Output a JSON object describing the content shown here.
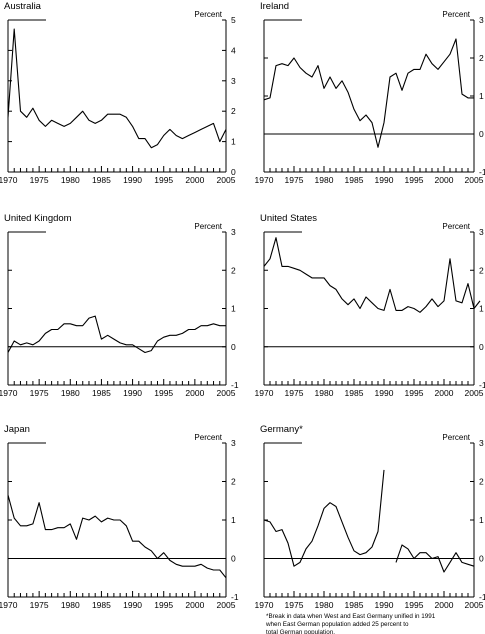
{
  "chart_data": [
    {
      "type": "line",
      "title": "Australia",
      "unit_label": "Percent",
      "ylim": [
        0,
        5
      ],
      "yticks": [
        0,
        1,
        2,
        3,
        4,
        5
      ],
      "xlim": [
        1970,
        2005
      ],
      "xticks": [
        1970,
        1975,
        1980,
        1985,
        1990,
        1995,
        2000,
        2005
      ],
      "zero_line": false,
      "segments": [
        [
          [
            1970,
            1.8
          ],
          [
            1971,
            4.7
          ],
          [
            1972,
            2.0
          ],
          [
            1973,
            1.8
          ],
          [
            1974,
            2.1
          ],
          [
            1975,
            1.7
          ],
          [
            1976,
            1.5
          ],
          [
            1977,
            1.7
          ],
          [
            1978,
            1.6
          ],
          [
            1979,
            1.5
          ],
          [
            1980,
            1.6
          ],
          [
            1981,
            1.8
          ],
          [
            1982,
            2.0
          ],
          [
            1983,
            1.7
          ],
          [
            1984,
            1.6
          ],
          [
            1985,
            1.7
          ],
          [
            1986,
            1.9
          ],
          [
            1987,
            1.9
          ],
          [
            1988,
            1.9
          ],
          [
            1989,
            1.8
          ],
          [
            1990,
            1.5
          ],
          [
            1991,
            1.1
          ],
          [
            1992,
            1.1
          ],
          [
            1993,
            0.8
          ],
          [
            1994,
            0.9
          ],
          [
            1995,
            1.2
          ],
          [
            1996,
            1.4
          ],
          [
            1997,
            1.2
          ],
          [
            1998,
            1.1
          ],
          [
            1999,
            1.2
          ],
          [
            2000,
            1.3
          ],
          [
            2001,
            1.4
          ],
          [
            2002,
            1.5
          ],
          [
            2003,
            1.6
          ],
          [
            2004,
            1.0
          ],
          [
            2005,
            1.4
          ]
        ]
      ]
    },
    {
      "type": "line",
      "title": "Ireland",
      "unit_label": "Percent",
      "ylim": [
        -1,
        3
      ],
      "yticks": [
        -1,
        0,
        1,
        2,
        3
      ],
      "xlim": [
        1970,
        2005
      ],
      "xticks": [
        1970,
        1975,
        1980,
        1985,
        1990,
        1995,
        2000,
        2005
      ],
      "zero_line": true,
      "segments": [
        [
          [
            1970,
            0.9
          ],
          [
            1971,
            0.95
          ],
          [
            1972,
            1.8
          ],
          [
            1973,
            1.85
          ],
          [
            1974,
            1.8
          ],
          [
            1975,
            2.0
          ],
          [
            1976,
            1.75
          ],
          [
            1977,
            1.6
          ],
          [
            1978,
            1.5
          ],
          [
            1979,
            1.8
          ],
          [
            1980,
            1.2
          ],
          [
            1981,
            1.5
          ],
          [
            1982,
            1.2
          ],
          [
            1983,
            1.4
          ],
          [
            1984,
            1.1
          ],
          [
            1985,
            0.65
          ],
          [
            1986,
            0.35
          ],
          [
            1987,
            0.5
          ],
          [
            1988,
            0.3
          ],
          [
            1989,
            -0.35
          ],
          [
            1990,
            0.3
          ],
          [
            1991,
            1.5
          ],
          [
            1992,
            1.6
          ],
          [
            1993,
            1.15
          ],
          [
            1994,
            1.6
          ],
          [
            1995,
            1.7
          ],
          [
            1996,
            1.7
          ],
          [
            1997,
            2.1
          ],
          [
            1998,
            1.85
          ],
          [
            1999,
            1.7
          ],
          [
            2000,
            1.9
          ],
          [
            2001,
            2.1
          ],
          [
            2002,
            2.5
          ],
          [
            2003,
            1.05
          ],
          [
            2004,
            0.95
          ],
          [
            2005,
            0.95
          ]
        ]
      ]
    },
    {
      "type": "line",
      "title": "United Kingdom",
      "unit_label": "Percent",
      "ylim": [
        -1,
        3
      ],
      "yticks": [
        -1,
        0,
        1,
        2,
        3
      ],
      "xlim": [
        1970,
        2005
      ],
      "xticks": [
        1970,
        1975,
        1980,
        1985,
        1990,
        1995,
        2000,
        2005
      ],
      "zero_line": true,
      "segments": [
        [
          [
            1970,
            -0.15
          ],
          [
            1971,
            0.15
          ],
          [
            1972,
            0.05
          ],
          [
            1973,
            0.1
          ],
          [
            1974,
            0.05
          ],
          [
            1975,
            0.15
          ],
          [
            1976,
            0.35
          ],
          [
            1977,
            0.45
          ],
          [
            1978,
            0.45
          ],
          [
            1979,
            0.6
          ],
          [
            1980,
            0.6
          ],
          [
            1981,
            0.55
          ],
          [
            1982,
            0.55
          ],
          [
            1983,
            0.75
          ],
          [
            1984,
            0.8
          ],
          [
            1985,
            0.2
          ],
          [
            1986,
            0.3
          ],
          [
            1987,
            0.2
          ],
          [
            1988,
            0.1
          ],
          [
            1989,
            0.05
          ],
          [
            1990,
            0.05
          ],
          [
            1991,
            -0.05
          ],
          [
            1992,
            -0.15
          ],
          [
            1993,
            -0.1
          ],
          [
            1994,
            0.15
          ],
          [
            1995,
            0.25
          ],
          [
            1996,
            0.3
          ],
          [
            1997,
            0.3
          ],
          [
            1998,
            0.35
          ],
          [
            1999,
            0.45
          ],
          [
            2000,
            0.45
          ],
          [
            2001,
            0.55
          ],
          [
            2002,
            0.55
          ],
          [
            2003,
            0.6
          ],
          [
            2004,
            0.55
          ],
          [
            2005,
            0.55
          ]
        ]
      ]
    },
    {
      "type": "line",
      "title": "United States",
      "unit_label": "Percent",
      "ylim": [
        -1,
        3
      ],
      "yticks": [
        -1,
        0,
        1,
        2,
        3
      ],
      "xlim": [
        1970,
        2005
      ],
      "xticks": [
        1970,
        1975,
        1980,
        1985,
        1990,
        1995,
        2000,
        2005
      ],
      "zero_line": true,
      "segments": [
        [
          [
            1970,
            2.1
          ],
          [
            1971,
            2.3
          ],
          [
            1972,
            2.85
          ],
          [
            1973,
            2.1
          ],
          [
            1974,
            2.1
          ],
          [
            1975,
            2.05
          ],
          [
            1976,
            2.0
          ],
          [
            1977,
            1.9
          ],
          [
            1978,
            1.8
          ],
          [
            1979,
            1.8
          ],
          [
            1980,
            1.8
          ],
          [
            1981,
            1.6
          ],
          [
            1982,
            1.5
          ],
          [
            1983,
            1.25
          ],
          [
            1984,
            1.1
          ],
          [
            1985,
            1.25
          ],
          [
            1986,
            1.0
          ],
          [
            1987,
            1.3
          ],
          [
            1988,
            1.15
          ],
          [
            1989,
            1.0
          ],
          [
            1990,
            0.95
          ],
          [
            1991,
            1.5
          ],
          [
            1992,
            0.95
          ],
          [
            1993,
            0.95
          ],
          [
            1994,
            1.05
          ],
          [
            1995,
            1.0
          ],
          [
            1996,
            0.9
          ],
          [
            1997,
            1.05
          ],
          [
            1998,
            1.25
          ],
          [
            1999,
            1.05
          ],
          [
            2000,
            1.2
          ],
          [
            2001,
            2.3
          ],
          [
            2002,
            1.2
          ],
          [
            2003,
            1.15
          ],
          [
            2004,
            1.65
          ],
          [
            2005,
            1.0
          ],
          [
            2006,
            1.2
          ]
        ]
      ]
    },
    {
      "type": "line",
      "title": "Japan",
      "unit_label": "Percent",
      "ylim": [
        -1,
        3
      ],
      "yticks": [
        -1,
        0,
        1,
        2,
        3
      ],
      "xlim": [
        1970,
        2005
      ],
      "xticks": [
        1970,
        1975,
        1980,
        1985,
        1990,
        1995,
        2000,
        2005
      ],
      "zero_line": true,
      "segments": [
        [
          [
            1970,
            1.65
          ],
          [
            1971,
            1.05
          ],
          [
            1972,
            0.85
          ],
          [
            1973,
            0.85
          ],
          [
            1974,
            0.9
          ],
          [
            1975,
            1.45
          ],
          [
            1976,
            0.75
          ],
          [
            1977,
            0.75
          ],
          [
            1978,
            0.8
          ],
          [
            1979,
            0.8
          ],
          [
            1980,
            0.9
          ],
          [
            1981,
            0.5
          ],
          [
            1982,
            1.05
          ],
          [
            1983,
            1.0
          ],
          [
            1984,
            1.1
          ],
          [
            1985,
            0.95
          ],
          [
            1986,
            1.05
          ],
          [
            1987,
            1.0
          ],
          [
            1988,
            1.0
          ],
          [
            1989,
            0.85
          ],
          [
            1990,
            0.45
          ],
          [
            1991,
            0.45
          ],
          [
            1992,
            0.3
          ],
          [
            1993,
            0.2
          ],
          [
            1994,
            0.0
          ],
          [
            1995,
            0.15
          ],
          [
            1996,
            -0.05
          ],
          [
            1997,
            -0.15
          ],
          [
            1998,
            -0.2
          ],
          [
            1999,
            -0.2
          ],
          [
            2000,
            -0.2
          ],
          [
            2001,
            -0.15
          ],
          [
            2002,
            -0.25
          ],
          [
            2003,
            -0.3
          ],
          [
            2004,
            -0.3
          ],
          [
            2005,
            -0.5
          ]
        ]
      ]
    },
    {
      "type": "line",
      "title": "Germany*",
      "unit_label": "Percent",
      "ylim": [
        -1,
        3
      ],
      "yticks": [
        -1,
        0,
        1,
        2,
        3
      ],
      "xlim": [
        1970,
        2005
      ],
      "xticks": [
        1970,
        1975,
        1980,
        1985,
        1990,
        1995,
        2000,
        2005
      ],
      "zero_line": true,
      "note": "*Break in data when West and East Germany unified in 1991 when East German population added 25 percent to total German population.",
      "note_lines": [
        "*Break in data when West and East Germany unified in 1991",
        "when East German population added 25 percent to",
        "total German population."
      ],
      "segments": [
        [
          [
            1970,
            1.0
          ],
          [
            1971,
            0.95
          ],
          [
            1972,
            0.7
          ],
          [
            1973,
            0.75
          ],
          [
            1974,
            0.4
          ],
          [
            1975,
            -0.2
          ],
          [
            1976,
            -0.1
          ],
          [
            1977,
            0.25
          ],
          [
            1978,
            0.45
          ],
          [
            1979,
            0.85
          ],
          [
            1980,
            1.3
          ],
          [
            1981,
            1.45
          ],
          [
            1982,
            1.35
          ],
          [
            1983,
            0.95
          ],
          [
            1984,
            0.55
          ],
          [
            1985,
            0.2
          ],
          [
            1986,
            0.1
          ],
          [
            1987,
            0.15
          ],
          [
            1988,
            0.3
          ],
          [
            1989,
            0.7
          ],
          [
            1990,
            2.3
          ]
        ],
        [
          [
            1992,
            -0.1
          ],
          [
            1993,
            0.35
          ],
          [
            1994,
            0.25
          ],
          [
            1995,
            0.0
          ],
          [
            1996,
            0.15
          ],
          [
            1997,
            0.15
          ],
          [
            1998,
            0.0
          ],
          [
            1999,
            0.05
          ],
          [
            2000,
            -0.35
          ],
          [
            2001,
            -0.1
          ],
          [
            2002,
            0.15
          ],
          [
            2003,
            -0.1
          ],
          [
            2004,
            -0.15
          ],
          [
            2005,
            -0.2
          ]
        ]
      ]
    }
  ]
}
